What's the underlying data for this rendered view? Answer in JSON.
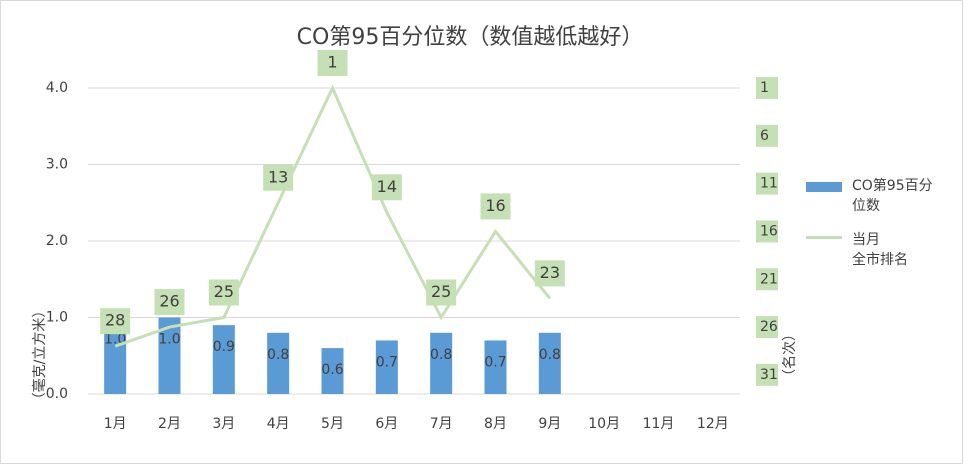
{
  "chart_data": {
    "type": "bar-line",
    "title": "CO第95百分位数（数值越低越好）",
    "y_label": "（毫克/立方米）",
    "y2_label": "（名次）",
    "categories": [
      "1月",
      "2月",
      "3月",
      "4月",
      "5月",
      "6月",
      "7月",
      "8月",
      "9月",
      "10月",
      "11月",
      "12月"
    ],
    "series": [
      {
        "name": "CO第95百分位数",
        "type": "bar",
        "color": "#5b9bd5",
        "values": [
          1.0,
          1.0,
          0.9,
          0.8,
          0.6,
          0.7,
          0.8,
          0.7,
          0.8,
          null,
          null,
          null
        ],
        "value_labels": [
          "1.0",
          "1.0",
          "0.9",
          "0.8",
          "0.6",
          "0.7",
          "0.8",
          "0.7",
          "0.8",
          null,
          null,
          null
        ]
      },
      {
        "name": "当月\n全市排名",
        "type": "line",
        "axis": "y2",
        "color": "#c5e0b4",
        "values": [
          28,
          26,
          25,
          13,
          1,
          14,
          25,
          16,
          23,
          null,
          null,
          null
        ]
      }
    ],
    "ylim": [
      0,
      4
    ],
    "yticks": [
      {
        "value": 0,
        "label": "0.0"
      },
      {
        "value": 1,
        "label": "1.0"
      },
      {
        "value": 2,
        "label": "2.0"
      },
      {
        "value": 3,
        "label": "3.0"
      },
      {
        "value": 4,
        "label": "4.0"
      }
    ],
    "y2lim": [
      33,
      1
    ],
    "y2ticks": [
      1,
      6,
      11,
      16,
      21,
      26,
      31
    ],
    "grid": true,
    "legend": "right"
  }
}
